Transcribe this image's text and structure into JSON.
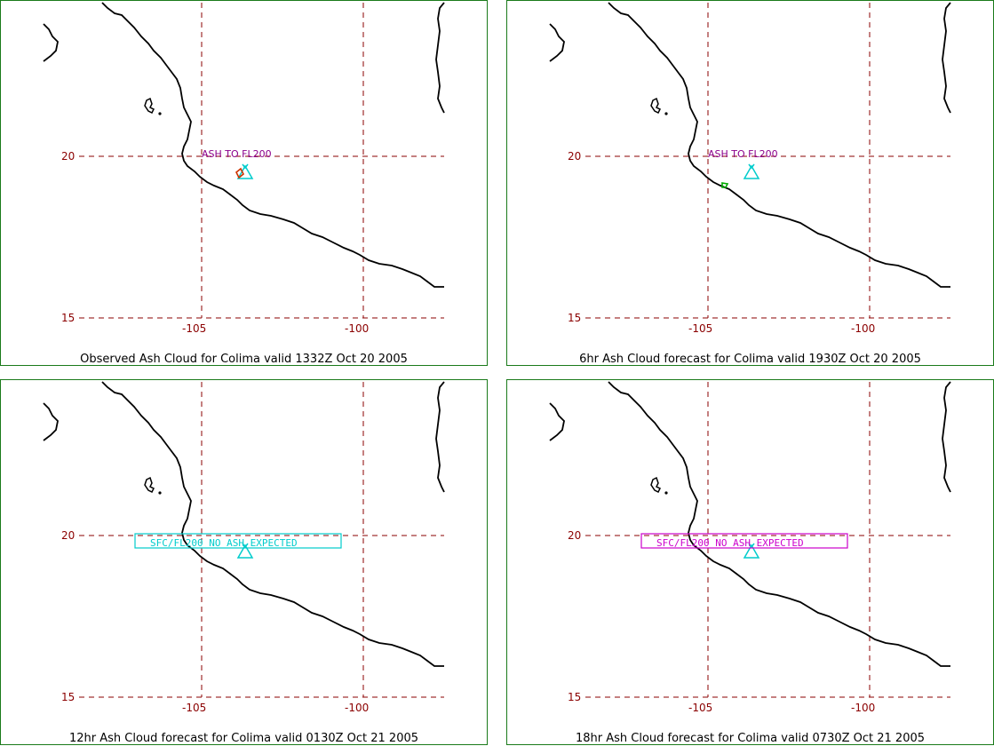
{
  "ticks": {
    "lat_20": "20",
    "lat_15": "15",
    "lon_105": "-105",
    "lon_100": "-100"
  },
  "colors": {
    "frame": "#1a7a1a",
    "grid": "#8b0000",
    "coast": "#000000",
    "volcano": "#00cccc",
    "label_purple": "#8b008b",
    "box_cyan": "#00cccc",
    "box_magenta": "#cc00cc",
    "obs_orange": "#cc3300",
    "fc_green": "#00aa00"
  },
  "panels": [
    {
      "caption": "Observed Ash Cloud for Colima valid 1332Z Oct 20 2005",
      "ash_label": "ASH TO FL200"
    },
    {
      "caption": "6hr Ash Cloud forecast for Colima valid 1930Z Oct 20 2005",
      "ash_label": "ASH TO FL200"
    },
    {
      "caption": "12hr Ash Cloud forecast for Colima valid 0130Z Oct 21 2005",
      "box_label": "SFC/FL200 NO ASH EXPECTED"
    },
    {
      "caption": "18hr Ash Cloud forecast for Colima valid 0730Z Oct 21 2005",
      "box_label": "SFC/FL200 NO ASH EXPECTED"
    }
  ]
}
